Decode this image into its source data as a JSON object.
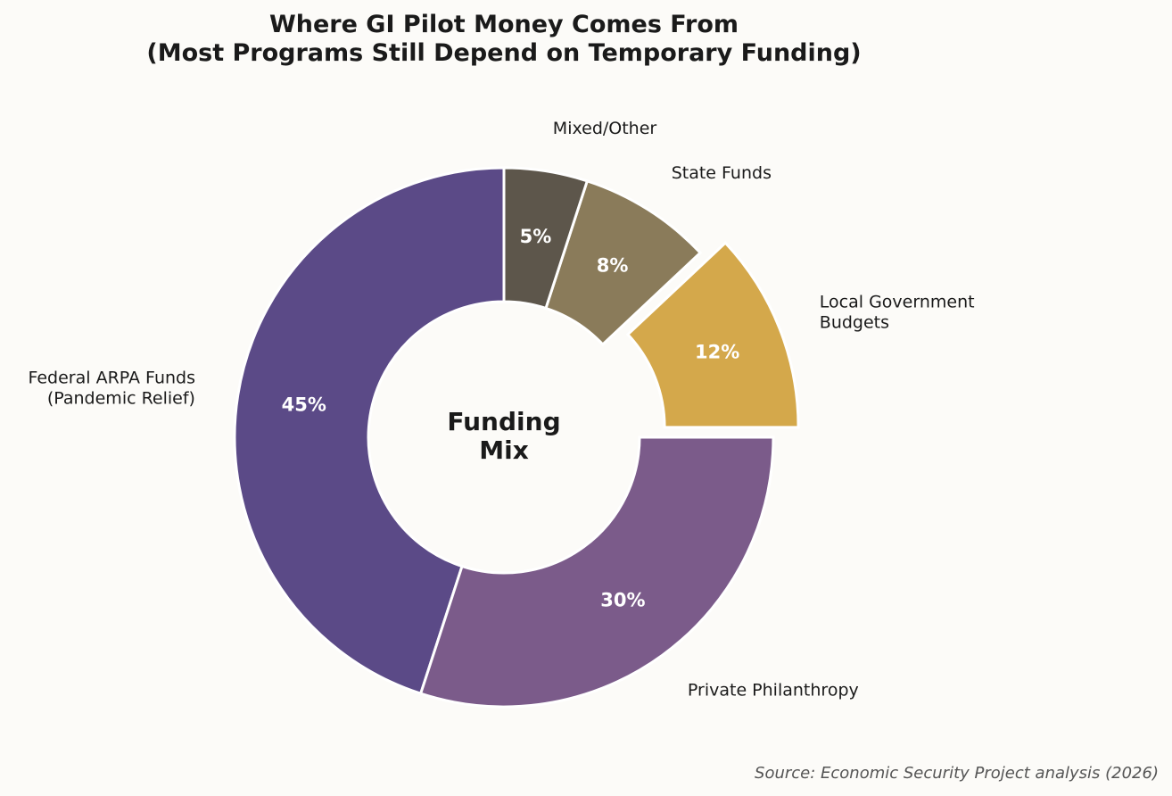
{
  "chart_data": {
    "type": "donut",
    "title": "Where GI Pilot Money Comes From\n(Most Programs Still Depend on Temporary Funding)",
    "center_label": "Funding\nMix",
    "categories": [
      "Federal ARPA Funds\n(Pandemic Relief)",
      "Private Philanthropy",
      "Local Government\nBudgets",
      "State Funds",
      "Mixed/Other"
    ],
    "values": [
      45,
      30,
      12,
      8,
      5
    ],
    "value_labels": [
      "45%",
      "30%",
      "12%",
      "8%",
      "5%"
    ],
    "colors": [
      "#5b4a87",
      "#7b5b8a",
      "#d4a84b",
      "#8a7b5a",
      "#5d564b"
    ],
    "explode": [
      0,
      0,
      0.1,
      0,
      0
    ],
    "source": "Source: Economic Security Project analysis (2026)"
  }
}
